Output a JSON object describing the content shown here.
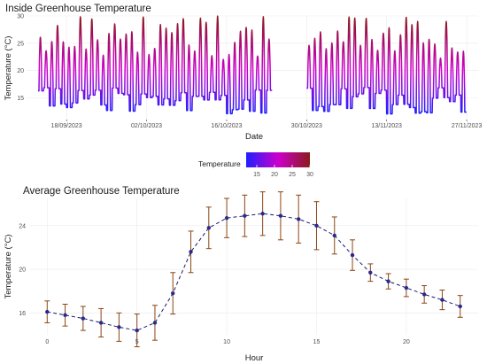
{
  "colors": {
    "panel_bg": "#ffffff",
    "grid": "#ebebeb",
    "temp_low": "#1f1fff",
    "temp_mid": "#cc00cc",
    "temp_high": "#8b1a1a",
    "avg_line": "#1a1a6e",
    "avg_point": "#2a2a8a",
    "error_bar": "#8b4513"
  },
  "chart_data": [
    {
      "type": "line",
      "title": "Inside Greenhouse Temperature",
      "xlabel": "Date",
      "ylabel": "Temperature (°C)",
      "x_ticks": [
        "18/09/2023",
        "02/10/2023",
        "16/10/2023",
        "30/10/2023",
        "13/11/2023",
        "27/11/2023"
      ],
      "y_ticks": [
        15,
        20,
        25,
        30
      ],
      "ylim": [
        11,
        30
      ],
      "x_range": [
        "2023-09-11",
        "2023-11-29"
      ],
      "data_start": "2023-09-13",
      "data_end": "2023-11-27",
      "gap": [
        "2023-10-24",
        "2023-10-30"
      ],
      "daily_min_range": [
        12,
        17
      ],
      "daily_max_range": [
        22,
        30
      ],
      "color_scale": {
        "title": "Temperature",
        "ticks": [
          15,
          20,
          25,
          30
        ],
        "low": 12,
        "high": 30
      },
      "grid": true
    },
    {
      "type": "line",
      "title": "Average Greenhouse Temperature",
      "xlabel": "Hour",
      "ylabel": "Temperature (°C)",
      "x_ticks": [
        0,
        5,
        10,
        15,
        20
      ],
      "y_ticks": [
        16,
        20,
        24
      ],
      "xlim": [
        -1,
        24
      ],
      "ylim": [
        14,
        26.5
      ],
      "x": [
        0,
        1,
        2,
        3,
        4,
        5,
        6,
        7,
        8,
        9,
        10,
        11,
        12,
        13,
        14,
        15,
        16,
        17,
        18,
        19,
        20,
        21,
        22,
        23
      ],
      "mean": [
        16.1,
        15.8,
        15.5,
        15.1,
        14.7,
        14.4,
        15.1,
        17.8,
        21.6,
        23.8,
        24.7,
        24.9,
        25.1,
        24.9,
        24.6,
        24.0,
        23.1,
        21.3,
        19.7,
        18.9,
        18.3,
        17.7,
        17.2,
        16.6
      ],
      "error": [
        1.0,
        1.0,
        1.1,
        1.3,
        1.3,
        1.5,
        1.6,
        1.9,
        1.9,
        1.9,
        1.8,
        1.9,
        2.0,
        2.2,
        2.2,
        2.2,
        1.7,
        1.4,
        0.8,
        0.7,
        0.8,
        0.8,
        0.9,
        1.0
      ],
      "line_style": "dashed",
      "grid": true
    }
  ]
}
